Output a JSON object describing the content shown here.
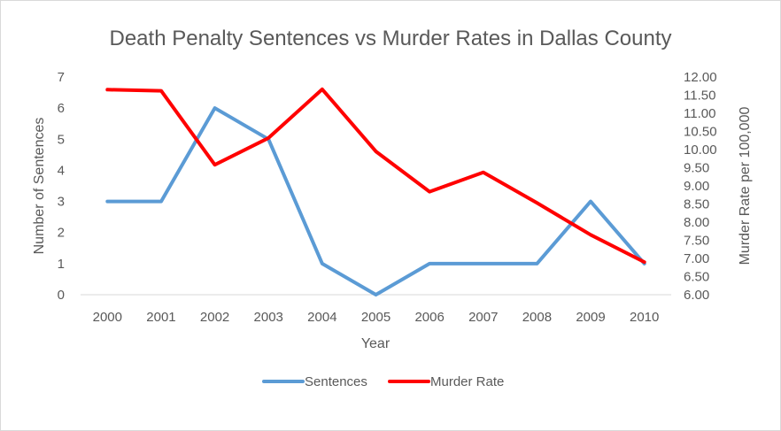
{
  "chart_data": {
    "type": "line",
    "title": "Death Penalty Sentences vs Murder Rates in Dallas County",
    "xlabel": "Year",
    "ylabel": "Number of Sentences",
    "y2label": "Murder Rate per 100,000",
    "categories": [
      "2000",
      "2001",
      "2002",
      "2003",
      "2004",
      "2005",
      "2006",
      "2007",
      "2008",
      "2009",
      "2010"
    ],
    "ylim": [
      0,
      7
    ],
    "y2lim": [
      6.0,
      12.0
    ],
    "yticks": [
      "0",
      "1",
      "2",
      "3",
      "4",
      "5",
      "6",
      "7"
    ],
    "y2ticks": [
      "6.00",
      "6.50",
      "7.00",
      "7.50",
      "8.00",
      "8.50",
      "9.00",
      "9.50",
      "10.00",
      "10.50",
      "11.00",
      "11.50",
      "12.00"
    ],
    "grid": false,
    "legend_position": "bottom",
    "series": [
      {
        "name": "Sentences",
        "axis": "left",
        "color": "#5b9bd5",
        "values": [
          3,
          3,
          6,
          5,
          1,
          0,
          1,
          1,
          1,
          3,
          1
        ]
      },
      {
        "name": "Murder Rate",
        "axis": "right",
        "color": "#ff0000",
        "values": [
          11.65,
          11.62,
          9.58,
          10.32,
          11.66,
          9.95,
          8.84,
          9.37,
          8.53,
          7.65,
          6.9
        ]
      }
    ]
  }
}
